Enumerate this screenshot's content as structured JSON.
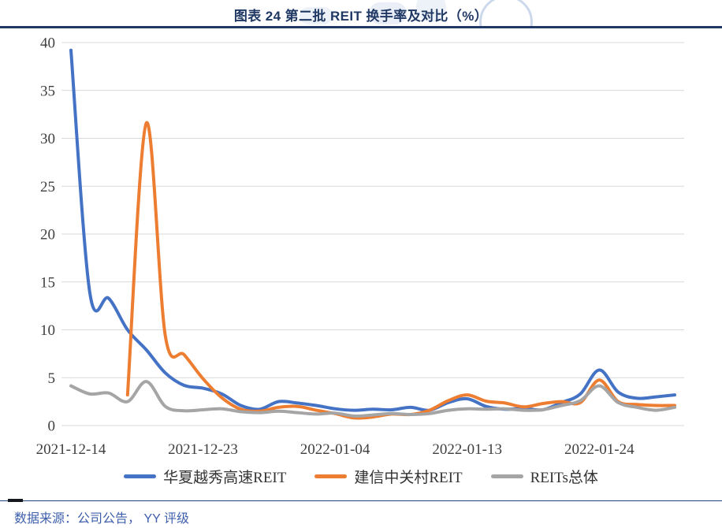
{
  "header": {
    "title": "图表 24 第二批 REIT 换手率及对比（%）"
  },
  "chart_data": {
    "type": "line",
    "title": "图表 24 第二批 REIT 换手率及对比（%）",
    "line_style": "smooth",
    "grid": true,
    "legend_position": "bottom",
    "ylim": [
      0,
      40
    ],
    "y_ticks": [
      0,
      5,
      10,
      15,
      20,
      25,
      30,
      35,
      40
    ],
    "x_tick_indices": [
      0,
      7,
      14,
      21,
      28
    ],
    "categories": [
      "2021-12-14",
      "2021-12-15",
      "2021-12-16",
      "2021-12-17",
      "2021-12-20",
      "2021-12-21",
      "2021-12-22",
      "2021-12-23",
      "2021-12-24",
      "2021-12-27",
      "2021-12-28",
      "2021-12-29",
      "2021-12-30",
      "2021-12-31",
      "2022-01-04",
      "2022-01-05",
      "2022-01-06",
      "2022-01-07",
      "2022-01-10",
      "2022-01-11",
      "2022-01-12",
      "2022-01-13",
      "2022-01-14",
      "2022-01-17",
      "2022-01-18",
      "2022-01-19",
      "2022-01-20",
      "2022-01-21",
      "2022-01-24",
      "2022-01-25",
      "2022-01-26",
      "2022-01-27",
      "2022-01-28"
    ],
    "series": [
      {
        "name": "华夏越秀高速REIT",
        "color": "#4472C4",
        "values": [
          39.2,
          13.9,
          13.3,
          10.0,
          7.9,
          5.5,
          4.2,
          3.9,
          3.3,
          2.1,
          1.7,
          2.5,
          2.35,
          2.1,
          1.75,
          1.6,
          1.7,
          1.65,
          1.9,
          1.6,
          2.4,
          2.8,
          2.0,
          1.7,
          1.8,
          1.65,
          2.4,
          3.3,
          5.8,
          3.5,
          2.85,
          3.0,
          3.2
        ]
      },
      {
        "name": "建信中关村REIT",
        "color": "#ED7D31",
        "values": [
          null,
          null,
          null,
          3.2,
          31.6,
          9.4,
          7.4,
          4.9,
          2.9,
          1.7,
          1.5,
          1.9,
          2.0,
          1.6,
          1.25,
          0.8,
          0.9,
          1.2,
          1.15,
          1.6,
          2.6,
          3.2,
          2.55,
          2.35,
          1.95,
          2.3,
          2.5,
          2.4,
          4.75,
          2.5,
          2.2,
          2.1,
          2.1
        ]
      },
      {
        "name": "REITs总体",
        "color": "#A5A5A5",
        "values": [
          4.15,
          3.3,
          3.4,
          2.5,
          4.6,
          2.0,
          1.55,
          1.65,
          1.75,
          1.45,
          1.35,
          1.5,
          1.35,
          1.2,
          1.3,
          1.0,
          1.1,
          1.25,
          1.15,
          1.25,
          1.6,
          1.75,
          1.7,
          1.75,
          1.6,
          1.65,
          2.1,
          2.6,
          4.15,
          2.4,
          1.9,
          1.6,
          1.9
        ]
      }
    ]
  },
  "footer": {
    "source": "数据来源：公司公告， YY 评级"
  }
}
